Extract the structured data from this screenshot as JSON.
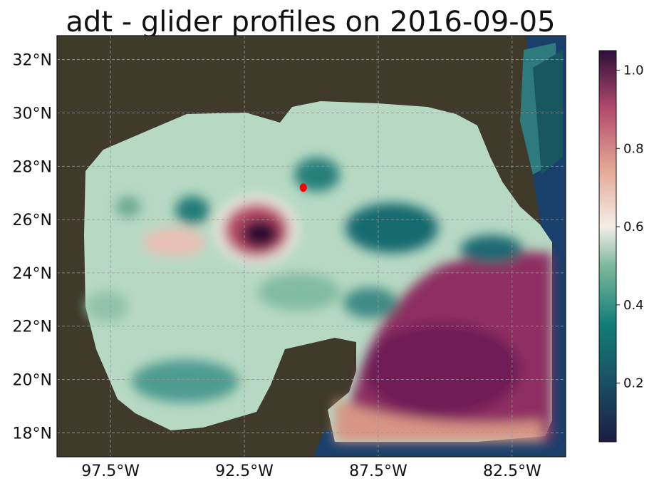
{
  "title": "adt - glider profiles on 2016-09-05",
  "chart_data": {
    "type": "heatmap",
    "title": "adt - glider profiles on 2016-09-05",
    "variable": "adt",
    "date": "2016-09-05",
    "xlim": [
      -99.5,
      -80.5
    ],
    "ylim": [
      17.1,
      32.9
    ],
    "x_ticks": [
      -97.5,
      -92.5,
      -87.5,
      -82.5
    ],
    "x_tick_labels": [
      "97.5°W",
      "92.5°W",
      "87.5°W",
      "82.5°W"
    ],
    "y_ticks": [
      18,
      20,
      22,
      24,
      26,
      28,
      30,
      32
    ],
    "y_tick_labels": [
      "18°N",
      "20°N",
      "22°N",
      "24°N",
      "26°N",
      "28°N",
      "30°N",
      "32°N"
    ],
    "grid": true,
    "colorbar": {
      "range": [
        0.05,
        1.05
      ],
      "ticks": [
        0.2,
        0.4,
        0.6,
        0.8,
        1.0
      ],
      "tick_labels": [
        "0.2",
        "0.4",
        "0.6",
        "0.8",
        "1.0"
      ],
      "colormap_stops": [
        [
          0.0,
          "#1c1d42"
        ],
        [
          0.15,
          "#1a4f63"
        ],
        [
          0.3,
          "#117e78"
        ],
        [
          0.45,
          "#7db89c"
        ],
        [
          0.55,
          "#f3efe8"
        ],
        [
          0.7,
          "#e4a593"
        ],
        [
          0.85,
          "#b44b6e"
        ],
        [
          1.0,
          "#2e0f3a"
        ]
      ]
    },
    "glider_points": [
      {
        "lon": -90.3,
        "lat": 27.2,
        "color": "#ff0000"
      }
    ],
    "colors": {
      "land": "#3f3a2a",
      "ocean": "#19406b",
      "gulf_loop_current": "#8e2f62",
      "gulf_background": "#b7d9c3"
    }
  }
}
